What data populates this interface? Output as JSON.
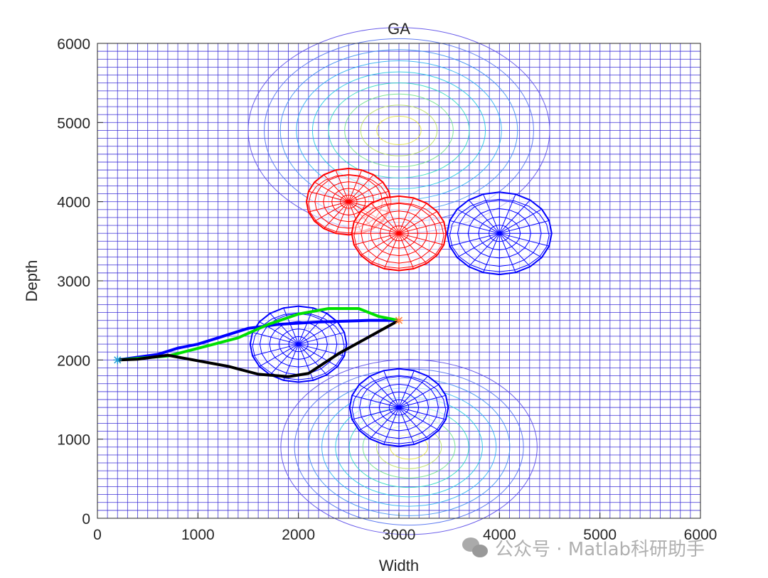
{
  "chart_data": {
    "type": "line",
    "title": "GA",
    "xlabel": "Width",
    "ylabel": "Depth",
    "xlim": [
      0,
      6000
    ],
    "ylim": [
      0,
      6000
    ],
    "xticks": [
      "0",
      "1000",
      "2000",
      "3000",
      "4000",
      "5000",
      "6000"
    ],
    "yticks": [
      "0",
      "1000",
      "2000",
      "3000",
      "4000",
      "5000",
      "6000"
    ],
    "grid": "mesh surface, spacing 100",
    "start": {
      "x": 200,
      "y": 2000,
      "marker": "*",
      "color": "#1f9bd6"
    },
    "goal": {
      "x": 3000,
      "y": 2500,
      "marker": "*",
      "color": "#ff7f3f"
    },
    "series": [
      {
        "color": "#0000ff",
        "points": [
          [
            200,
            2000
          ],
          [
            600,
            2070
          ],
          [
            800,
            2150
          ],
          [
            1000,
            2200
          ],
          [
            1200,
            2280
          ],
          [
            1500,
            2400
          ],
          [
            1800,
            2450
          ],
          [
            2200,
            2480
          ],
          [
            2700,
            2500
          ],
          [
            3000,
            2500
          ]
        ]
      },
      {
        "color": "#00e000",
        "points": [
          [
            200,
            2000
          ],
          [
            700,
            2050
          ],
          [
            1100,
            2180
          ],
          [
            1400,
            2280
          ],
          [
            1700,
            2450
          ],
          [
            2000,
            2580
          ],
          [
            2300,
            2650
          ],
          [
            2600,
            2650
          ],
          [
            2800,
            2550
          ],
          [
            3000,
            2500
          ]
        ]
      },
      {
        "color": "#000000",
        "points": [
          [
            200,
            2000
          ],
          [
            400,
            2010
          ],
          [
            700,
            2060
          ],
          [
            1000,
            1990
          ],
          [
            1300,
            1920
          ],
          [
            1600,
            1820
          ],
          [
            1900,
            1790
          ],
          [
            2100,
            1830
          ],
          [
            2400,
            2080
          ],
          [
            2700,
            2290
          ],
          [
            3000,
            2500
          ]
        ]
      }
    ],
    "threats": [
      {
        "x": 2500,
        "y": 4000,
        "r": 420,
        "color": "#ff0000"
      },
      {
        "x": 3000,
        "y": 3600,
        "r": 470,
        "color": "#ff0000"
      },
      {
        "x": 4000,
        "y": 3600,
        "r": 520,
        "color": "#0000ff"
      },
      {
        "x": 2000,
        "y": 2200,
        "r": 480,
        "color": "#0000ff"
      },
      {
        "x": 3000,
        "y": 1400,
        "r": 490,
        "color": "#0000ff"
      }
    ],
    "terrain_peaks": [
      {
        "x": 3000,
        "y": 4900
      },
      {
        "x": 3100,
        "y": 900
      }
    ]
  },
  "watermark": "公众号 · Matlab科研助手"
}
